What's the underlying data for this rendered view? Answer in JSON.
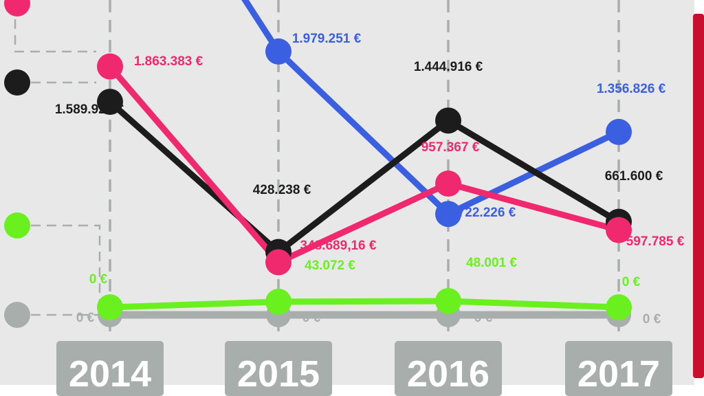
{
  "colors": {
    "background": "#e8e8e8",
    "accent_bar": "#c8102e",
    "year_box": "#a7aeac",
    "guide": "#a7aeac"
  },
  "chart_data": {
    "type": "line",
    "x": [
      "2014",
      "2015",
      "2016",
      "2017"
    ],
    "grid": true,
    "series": [
      {
        "color": "#3a5fe0",
        "values": [
          null,
          1979251,
          722226,
          1356826
        ],
        "labels": [
          "",
          "1.979.251 €",
          "722.226 €",
          "1.356.826 €"
        ],
        "note": "line enters from above the top edge before 2015"
      },
      {
        "color": "#1c1c1c",
        "values": [
          1589929,
          428238,
          1444916,
          661600
        ],
        "labels": [
          "1.589.929 €",
          "428.238 €",
          "1.444.916 €",
          "661.600 €"
        ]
      },
      {
        "color": "#f0286e",
        "values": [
          1863383,
          348689.16,
          957367,
          597785
        ],
        "labels": [
          "1.863.383 €",
          "348.689,16 €",
          "957.367 €",
          "597.785 €"
        ]
      },
      {
        "color": "#6af01e",
        "values": [
          0,
          43072,
          48001,
          0
        ],
        "labels": [
          "0 €",
          "43.072 €",
          "48.001 €",
          "0 €"
        ]
      },
      {
        "color": "#a7aeac",
        "values": [
          0,
          0,
          0,
          0
        ],
        "labels": [
          "0 €",
          "0 €",
          "0 €",
          "0 €"
        ]
      }
    ]
  }
}
